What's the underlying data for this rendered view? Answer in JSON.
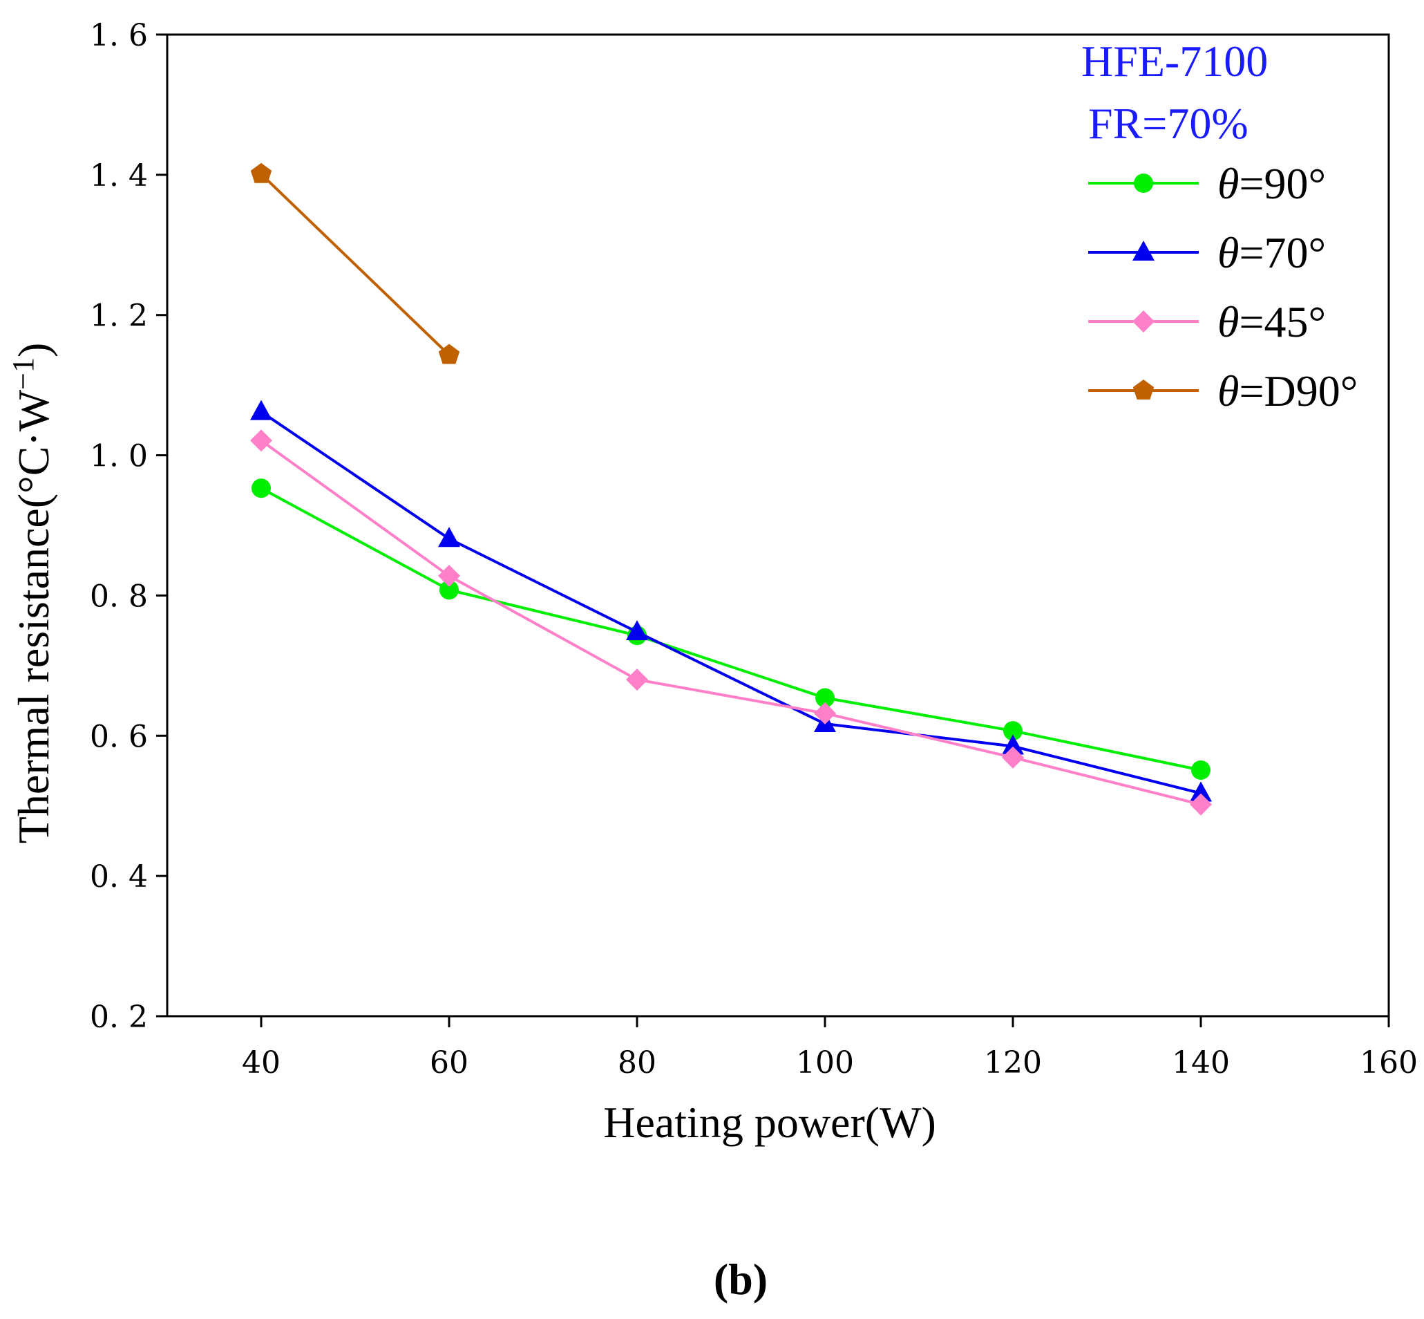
{
  "chart_data": {
    "type": "line",
    "title": "",
    "xlabel": "Heating power(W)",
    "ylabel": "Thermal resistance(°C·W",
    "ylabel_superscript": "−1",
    "ylabel_close": ")",
    "xlim": [
      30,
      160
    ],
    "ylim": [
      0.2,
      1.6
    ],
    "xticks": [
      40,
      60,
      80,
      100,
      120,
      140,
      160
    ],
    "xtick_labels": [
      "40",
      "60",
      "80",
      "100",
      "120",
      "140",
      "160"
    ],
    "yticks": [
      0.2,
      0.4,
      0.6,
      0.8,
      1.0,
      1.2,
      1.4,
      1.6
    ],
    "ytick_labels": [
      "0. 2",
      "0. 4",
      "0. 6",
      "0. 8",
      "1. 0",
      "1. 2",
      "1. 4",
      "1. 6"
    ],
    "grid": false,
    "legend_position": "top-right",
    "annotations": [
      {
        "text": "HFE-7100",
        "color": "#1a1aff"
      },
      {
        "text": "FR=70%",
        "color": "#1a1aff"
      }
    ],
    "series": [
      {
        "name": "θ=90°",
        "symbol": "θ",
        "label_rest": "=90°",
        "color": "#00ee00",
        "marker": "circle",
        "x": [
          40,
          60,
          80,
          100,
          120,
          140
        ],
        "y": [
          0.953,
          0.808,
          0.743,
          0.654,
          0.607,
          0.551
        ]
      },
      {
        "name": "θ=70°",
        "symbol": "θ",
        "label_rest": "=70°",
        "color": "#0000ee",
        "marker": "triangle",
        "x": [
          40,
          60,
          80,
          100,
          120,
          140
        ],
        "y": [
          1.062,
          0.881,
          0.748,
          0.617,
          0.585,
          0.518
        ]
      },
      {
        "name": "θ=45°",
        "symbol": "θ",
        "label_rest": "=45°",
        "color": "#ff80c8",
        "marker": "diamond",
        "x": [
          40,
          60,
          80,
          100,
          120,
          140
        ],
        "y": [
          1.021,
          0.828,
          0.68,
          0.632,
          0.569,
          0.502
        ]
      },
      {
        "name": "θ=D90°",
        "symbol": "θ",
        "label_rest": "=D90°",
        "color": "#c06000",
        "marker": "pentagon",
        "x": [
          40,
          60
        ],
        "y": [
          1.401,
          1.143
        ]
      }
    ]
  },
  "panel_label": "(b)"
}
